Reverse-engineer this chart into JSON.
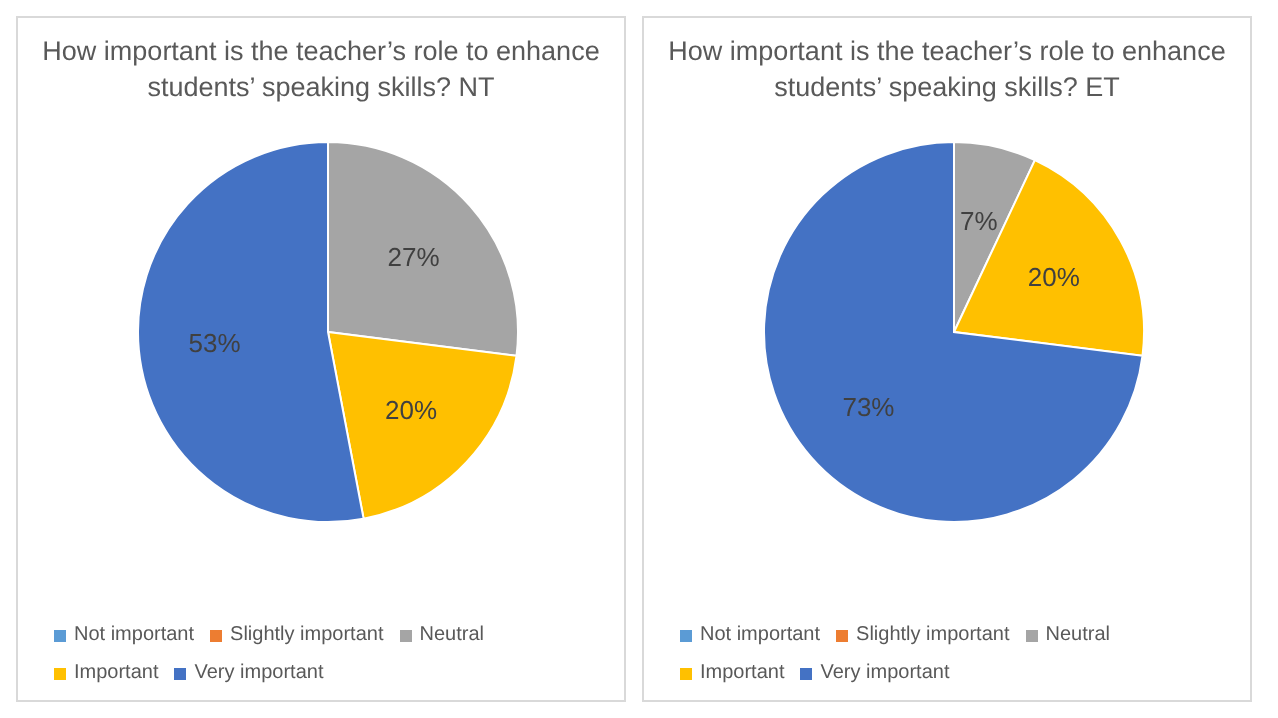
{
  "chart_data": [
    {
      "type": "pie",
      "title": "How important is the teacher’s role to enhance students’ speaking skills? NT",
      "categories": [
        "Not important",
        "Slightly important",
        "Neutral",
        "Important",
        "Very important"
      ],
      "values": [
        0,
        0,
        27,
        20,
        53
      ],
      "colors": [
        "#5b9bd5",
        "#ed7d31",
        "#a5a5a5",
        "#ffc000",
        "#4472c4"
      ],
      "value_labels": [
        null,
        null,
        "27%",
        "20%",
        "53%"
      ],
      "legend": "bottom"
    },
    {
      "type": "pie",
      "title": "How important is the teacher’s role to enhance students’ speaking skills? ET",
      "categories": [
        "Not important",
        "Slightly important",
        "Neutral",
        "Important",
        "Very important"
      ],
      "values": [
        0,
        0,
        7,
        20,
        73
      ],
      "colors": [
        "#5b9bd5",
        "#ed7d31",
        "#a5a5a5",
        "#ffc000",
        "#4472c4"
      ],
      "value_labels": [
        null,
        null,
        "7%",
        "20%",
        "73%"
      ],
      "legend": "bottom"
    }
  ]
}
